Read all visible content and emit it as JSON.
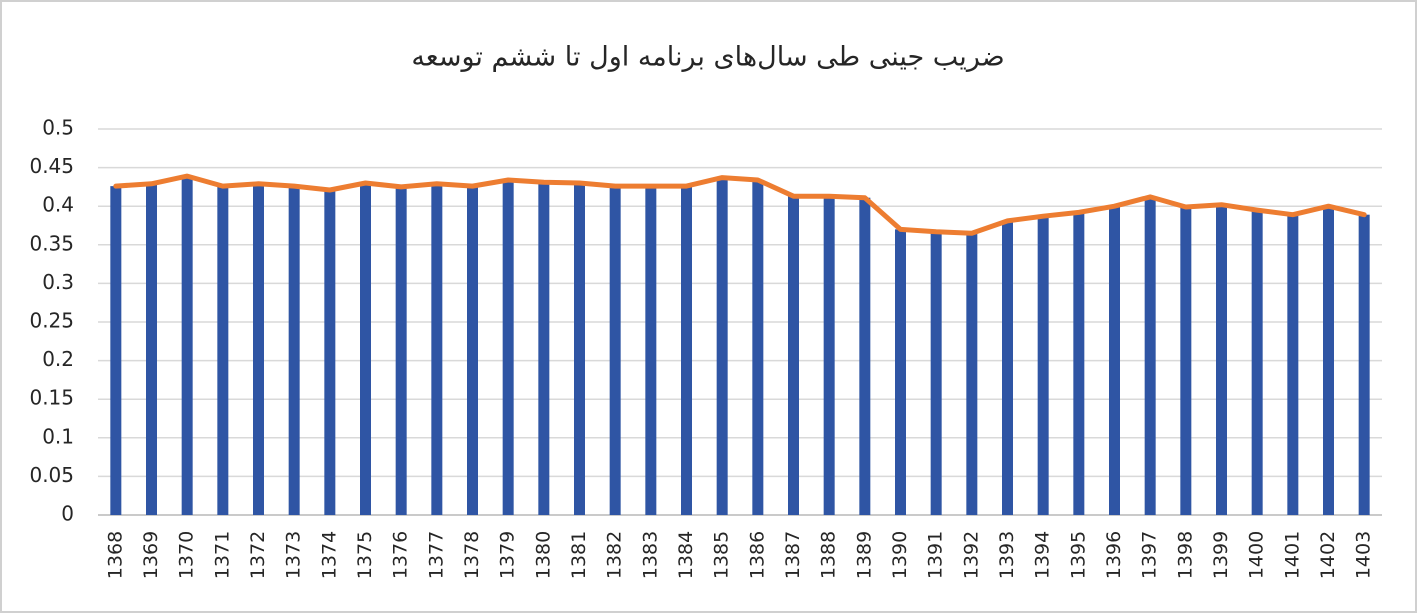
{
  "chart_data": {
    "type": "bar",
    "title": "ضریب جینی طی سال‌های برنامه اول تا ششم توسعه",
    "categories": [
      "1368",
      "1369",
      "1370",
      "1371",
      "1372",
      "1373",
      "1374",
      "1375",
      "1376",
      "1377",
      "1378",
      "1379",
      "1380",
      "1381",
      "1382",
      "1383",
      "1384",
      "1385",
      "1386",
      "1387",
      "1388",
      "1389",
      "1390",
      "1391",
      "1392",
      "1393",
      "1394",
      "1395",
      "1396",
      "1397",
      "1398",
      "1399",
      "1400",
      "1401",
      "1402",
      "1403"
    ],
    "values": [
      0.426,
      0.429,
      0.439,
      0.426,
      0.429,
      0.426,
      0.421,
      0.43,
      0.425,
      0.429,
      0.426,
      0.434,
      0.431,
      0.43,
      0.426,
      0.426,
      0.426,
      0.437,
      0.434,
      0.413,
      0.413,
      0.411,
      0.37,
      0.367,
      0.365,
      0.381,
      0.387,
      0.392,
      0.4,
      0.412,
      0.399,
      0.402,
      0.395,
      0.389,
      0.4,
      0.389
    ],
    "color": "#2f55a4",
    "line_overlay": true,
    "line_color": "#ed7d31",
    "ylim": [
      0,
      0.5
    ],
    "yticks": [
      0,
      0.05,
      0.1,
      0.15,
      0.2,
      0.25,
      0.3,
      0.35,
      0.4,
      0.45,
      0.5
    ],
    "grid": true
  }
}
